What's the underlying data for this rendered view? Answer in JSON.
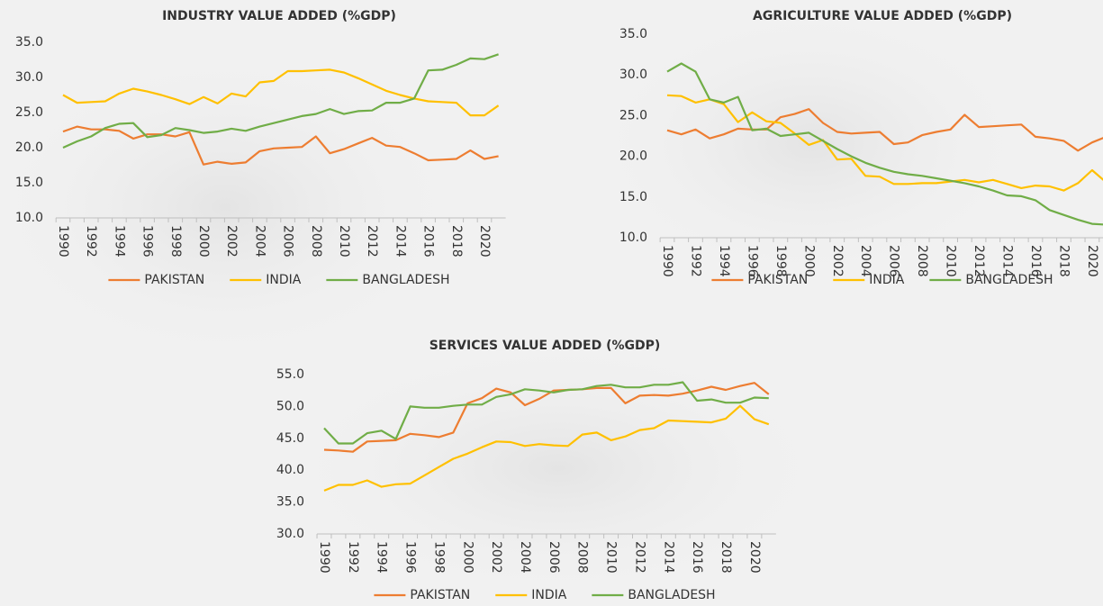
{
  "chart_data": [
    {
      "type": "line",
      "title": "INDUSTRY VALUE ADDED (%GDP)",
      "categories": [
        "1990",
        null,
        "1992",
        null,
        "1994",
        null,
        "1996",
        null,
        "1998",
        null,
        "2000",
        null,
        "2002",
        null,
        "2004",
        null,
        "2006",
        null,
        "2008",
        null,
        "2010",
        null,
        "2012",
        null,
        "2014",
        null,
        "2016",
        null,
        "2018",
        null,
        "2020",
        null
      ],
      "series": [
        {
          "name": "PAKISTAN",
          "color": "#ed7d31",
          "values": [
            22.3,
            23.0,
            22.6,
            22.6,
            22.4,
            21.3,
            21.9,
            21.9,
            21.6,
            22.2,
            17.6,
            18.0,
            17.7,
            17.9,
            19.5,
            19.9,
            20.0,
            20.1,
            21.6,
            19.2,
            19.8,
            20.6,
            21.4,
            20.3,
            20.1,
            19.2,
            18.2,
            18.3,
            18.4,
            19.6,
            18.4,
            18.8
          ]
        },
        {
          "name": "INDIA",
          "color": "#ffc000",
          "values": [
            27.5,
            26.4,
            26.5,
            26.6,
            27.7,
            28.4,
            28.0,
            27.5,
            26.9,
            26.2,
            27.2,
            26.3,
            27.7,
            27.3,
            29.3,
            29.5,
            30.9,
            30.9,
            31.0,
            31.1,
            30.7,
            29.9,
            29.0,
            28.1,
            27.5,
            27.0,
            26.6,
            26.5,
            26.4,
            24.6,
            24.6,
            26.0
          ]
        },
        {
          "name": "BANGLADESH",
          "color": "#70ad47",
          "values": [
            20.0,
            20.9,
            21.6,
            22.8,
            23.4,
            23.5,
            21.5,
            21.8,
            22.8,
            22.5,
            22.1,
            22.3,
            22.7,
            22.4,
            23.0,
            23.5,
            24.0,
            24.5,
            24.8,
            25.5,
            24.8,
            25.2,
            25.3,
            26.4,
            26.4,
            27.0,
            31.0,
            31.1,
            31.8,
            32.7,
            32.6,
            33.3
          ]
        }
      ],
      "ylim": [
        10,
        35
      ],
      "yticks": [
        {
          "value": 10,
          "label": "10.0"
        },
        {
          "value": 15,
          "label": "15.0"
        },
        {
          "value": 20,
          "label": "20.0"
        },
        {
          "value": 25,
          "label": "25.0"
        },
        {
          "value": 30,
          "label": "30.0"
        },
        {
          "value": 35,
          "label": "35.0"
        }
      ],
      "grid": false,
      "legend": "bottom"
    },
    {
      "type": "line",
      "title": "AGRICULTURE VALUE ADDED (%GDP)",
      "categories": [
        "1990",
        null,
        "1992",
        null,
        "1994",
        null,
        "1996",
        null,
        "1998",
        null,
        "2000",
        null,
        "2002",
        null,
        "2004",
        null,
        "2006",
        null,
        "2008",
        null,
        "2010",
        null,
        "2012",
        null,
        "2014",
        null,
        "2016",
        null,
        "2018",
        null,
        "2020",
        null
      ],
      "series": [
        {
          "name": "PAKISTAN",
          "color": "#ed7d31",
          "values": [
            23.2,
            22.7,
            23.3,
            22.2,
            22.7,
            23.4,
            23.3,
            23.3,
            24.8,
            25.2,
            25.8,
            24.1,
            23.0,
            22.8,
            22.9,
            23.0,
            21.5,
            21.7,
            22.6,
            23.0,
            23.3,
            25.1,
            23.6,
            23.7,
            23.8,
            23.9,
            22.4,
            22.2,
            21.9,
            20.7,
            21.7,
            22.4
          ]
        },
        {
          "name": "INDIA",
          "color": "#ffc000",
          "values": [
            27.5,
            27.4,
            26.6,
            27.0,
            26.4,
            24.2,
            25.4,
            24.3,
            24.1,
            22.8,
            21.4,
            22.0,
            19.6,
            19.7,
            17.6,
            17.5,
            16.6,
            16.6,
            16.7,
            16.7,
            16.9,
            17.1,
            16.8,
            17.1,
            16.6,
            16.1,
            16.4,
            16.3,
            15.8,
            16.7,
            18.3,
            16.8
          ]
        },
        {
          "name": "BANGLADESH",
          "color": "#70ad47",
          "values": [
            30.4,
            31.4,
            30.4,
            27.0,
            26.6,
            27.3,
            23.2,
            23.4,
            22.5,
            22.7,
            22.9,
            21.9,
            20.9,
            20.0,
            19.2,
            18.6,
            18.1,
            17.8,
            17.6,
            17.3,
            17.0,
            16.7,
            16.3,
            15.8,
            15.2,
            15.1,
            14.6,
            13.4,
            12.8,
            12.2,
            11.7,
            11.6
          ]
        }
      ],
      "ylim": [
        10,
        35
      ],
      "yticks": [
        {
          "value": 10,
          "label": "10.0"
        },
        {
          "value": 15,
          "label": "15.0"
        },
        {
          "value": 20,
          "label": "20.0"
        },
        {
          "value": 25,
          "label": "25.0"
        },
        {
          "value": 30,
          "label": "30.0"
        },
        {
          "value": 35,
          "label": "35.0"
        }
      ],
      "grid": false,
      "legend": "bottom"
    },
    {
      "type": "line",
      "title": "SERVICES VALUE ADDED (%GDP)",
      "categories": [
        "1990",
        null,
        "1992",
        null,
        "1994",
        null,
        "1996",
        null,
        "1998",
        null,
        "2000",
        null,
        "2002",
        null,
        "2004",
        null,
        "2006",
        null,
        "2008",
        null,
        "2010",
        null,
        "2012",
        null,
        "2014",
        null,
        "2016",
        null,
        "2018",
        null,
        "2020",
        null
      ],
      "series": [
        {
          "name": "PAKISTAN",
          "color": "#ed7d31",
          "values": [
            43.2,
            43.1,
            42.9,
            44.5,
            44.6,
            44.7,
            45.7,
            45.5,
            45.2,
            45.9,
            50.5,
            51.3,
            52.8,
            52.2,
            50.2,
            51.2,
            52.5,
            52.6,
            52.7,
            52.9,
            52.9,
            50.5,
            51.7,
            51.8,
            51.7,
            52.0,
            52.5,
            53.1,
            52.6,
            53.2,
            53.7,
            51.9
          ]
        },
        {
          "name": "INDIA",
          "color": "#ffc000",
          "values": [
            36.8,
            37.7,
            37.7,
            38.4,
            37.4,
            37.8,
            37.9,
            39.2,
            40.5,
            41.8,
            42.6,
            43.6,
            44.5,
            44.4,
            43.8,
            44.1,
            43.9,
            43.8,
            45.6,
            45.9,
            44.7,
            45.3,
            46.3,
            46.6,
            47.8,
            47.7,
            47.6,
            47.5,
            48.1,
            50.1,
            48.0,
            47.2
          ]
        },
        {
          "name": "BANGLADESH",
          "color": "#70ad47",
          "values": [
            46.6,
            44.2,
            44.2,
            45.8,
            46.2,
            44.9,
            50.0,
            49.8,
            49.8,
            50.1,
            50.3,
            50.3,
            51.5,
            51.9,
            52.7,
            52.5,
            52.2,
            52.6,
            52.7,
            53.2,
            53.4,
            53.0,
            53.0,
            53.4,
            53.4,
            53.8,
            50.9,
            51.1,
            50.6,
            50.6,
            51.4,
            51.3
          ]
        }
      ],
      "ylim": [
        30,
        55
      ],
      "yticks": [
        {
          "value": 30,
          "label": "30.0"
        },
        {
          "value": 35,
          "label": "35.0"
        },
        {
          "value": 40,
          "label": "40.0"
        },
        {
          "value": 45,
          "label": "45.0"
        },
        {
          "value": 50,
          "label": "50.0"
        },
        {
          "value": 55,
          "label": "55.0"
        }
      ],
      "grid": false,
      "legend": "bottom"
    }
  ]
}
